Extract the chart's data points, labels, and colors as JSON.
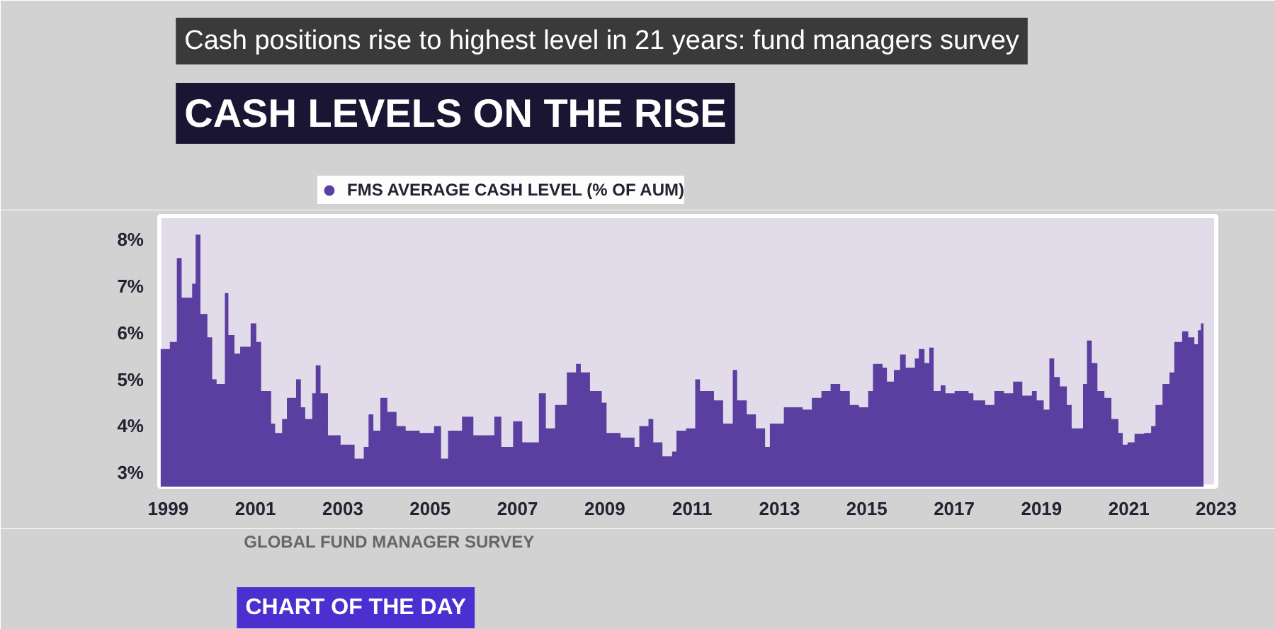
{
  "chart_data": {
    "type": "area",
    "title": "Cash positions rise to highest level in 21 years: fund managers survey",
    "subtitle": "CASH LEVELS ON THE RISE",
    "annotations": [
      "GLOBAL FUND MANAGER SURVEY",
      "CHART OF THE DAY"
    ],
    "x": [
      1998.83,
      1999.04,
      1999.2,
      1999.31,
      1999.55,
      1999.63,
      1999.74,
      1999.9,
      2000.01,
      2000.11,
      2000.3,
      2000.38,
      2000.52,
      2000.65,
      2000.89,
      2001.02,
      2001.13,
      2001.36,
      2001.45,
      2001.61,
      2001.72,
      2001.93,
      2002.04,
      2002.14,
      2002.3,
      2002.38,
      2002.49,
      2002.66,
      2002.95,
      2003.27,
      2003.48,
      2003.59,
      2003.7,
      2003.86,
      2004.02,
      2004.23,
      2004.44,
      2004.76,
      2005.09,
      2005.25,
      2005.41,
      2005.73,
      2005.99,
      2006.26,
      2006.47,
      2006.63,
      2006.9,
      2007.11,
      2007.49,
      2007.65,
      2007.86,
      2008.13,
      2008.34,
      2008.45,
      2008.66,
      2008.93,
      2009.04,
      2009.36,
      2009.68,
      2009.79,
      2010.0,
      2010.11,
      2010.32,
      2010.54,
      2010.64,
      2010.86,
      2011.07,
      2011.18,
      2011.5,
      2011.71,
      2011.93,
      2012.03,
      2012.25,
      2012.46,
      2012.67,
      2012.78,
      2013.1,
      2013.53,
      2013.74,
      2013.96,
      2014.17,
      2014.39,
      2014.61,
      2014.82,
      2015.03,
      2015.14,
      2015.36,
      2015.46,
      2015.62,
      2015.76,
      2015.89,
      2016.1,
      2016.19,
      2016.32,
      2016.43,
      2016.53,
      2016.69,
      2016.8,
      2017.01,
      2017.33,
      2017.44,
      2017.71,
      2017.92,
      2018.14,
      2018.35,
      2018.56,
      2018.78,
      2018.89,
      2019.05,
      2019.18,
      2019.29,
      2019.42,
      2019.58,
      2019.69,
      2019.95,
      2020.04,
      2020.15,
      2020.28,
      2020.44,
      2020.6,
      2020.76,
      2020.86,
      2020.97,
      2021.13,
      2021.35,
      2021.51,
      2021.61,
      2021.77,
      2021.93,
      2022.04,
      2022.22,
      2022.36,
      2022.5,
      2022.58,
      2022.65,
      2022.71
    ],
    "series": [
      {
        "name": "FMS AVERAGE CASH LEVEL (% OF AUM)",
        "color": "#5b3fa0",
        "values": [
          5.65,
          5.8,
          7.6,
          6.75,
          7.05,
          8.1,
          6.4,
          5.9,
          5.0,
          4.9,
          6.85,
          5.95,
          5.55,
          5.7,
          6.2,
          5.8,
          4.75,
          4.05,
          3.85,
          4.15,
          4.6,
          5.0,
          4.4,
          4.15,
          4.7,
          5.3,
          4.7,
          3.8,
          3.6,
          3.3,
          3.55,
          4.25,
          3.9,
          4.6,
          4.3,
          4.0,
          3.9,
          3.85,
          4.0,
          3.3,
          3.9,
          4.2,
          3.8,
          3.8,
          4.2,
          3.55,
          4.1,
          3.65,
          4.7,
          3.95,
          4.45,
          5.15,
          5.33,
          5.15,
          4.75,
          4.5,
          3.85,
          3.75,
          3.55,
          4.0,
          4.15,
          3.65,
          3.35,
          3.45,
          3.9,
          3.95,
          5.0,
          4.75,
          4.55,
          4.05,
          5.2,
          4.55,
          4.25,
          3.95,
          3.55,
          4.05,
          4.4,
          4.35,
          4.6,
          4.75,
          4.9,
          4.75,
          4.45,
          4.4,
          4.75,
          5.33,
          5.25,
          4.95,
          5.2,
          5.53,
          5.25,
          5.45,
          5.65,
          5.35,
          5.68,
          4.75,
          4.87,
          4.7,
          4.75,
          4.7,
          4.55,
          4.45,
          4.75,
          4.7,
          4.95,
          4.65,
          4.75,
          4.55,
          4.35,
          5.45,
          5.05,
          4.85,
          4.45,
          3.95,
          4.9,
          5.83,
          5.35,
          4.75,
          4.6,
          4.15,
          3.85,
          3.6,
          3.65,
          3.83,
          3.85,
          4.0,
          4.45,
          4.9,
          5.15,
          5.8,
          6.03,
          5.9,
          5.75,
          6.05,
          6.2,
          5.55
        ]
      }
    ],
    "xlim": [
      1998.8,
      2023.0
    ],
    "ylim": [
      2.7,
      8.5
    ],
    "xticks": [
      1999,
      2001,
      2003,
      2005,
      2007,
      2009,
      2011,
      2013,
      2015,
      2017,
      2019,
      2021,
      2023
    ],
    "yticks": [
      {
        "value": 3,
        "label": "3%"
      },
      {
        "value": 4,
        "label": "4%"
      },
      {
        "value": 5,
        "label": "5%"
      },
      {
        "value": 6,
        "label": "6%"
      },
      {
        "value": 7,
        "label": "7%"
      },
      {
        "value": 8,
        "label": "8%"
      }
    ],
    "grid": false,
    "legend": "top left"
  }
}
